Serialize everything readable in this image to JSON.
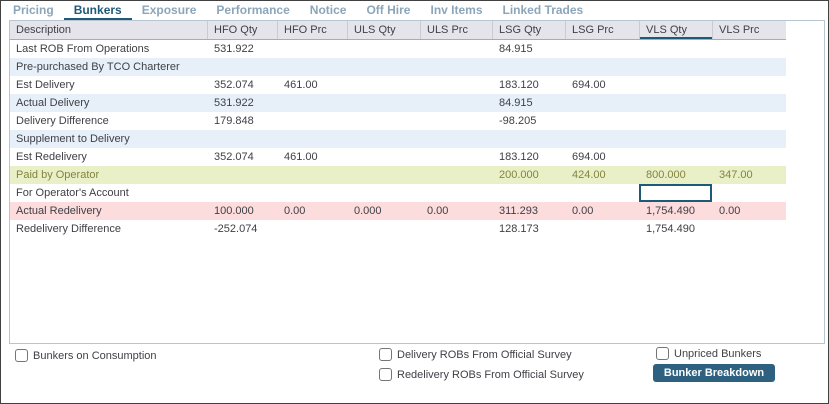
{
  "colors": {
    "accent": "#1d5a78",
    "tab_inactive": "#8ba6ba",
    "header_bg": "#e4e4ea",
    "header_text": "#3f3f46",
    "text": "#3f3f46",
    "row_alt": "#e7f0f8",
    "row_green": "#e9f0c8",
    "row_green_text": "#84843e",
    "row_pink": "#fcdcdc",
    "grid_border": "#b7c6d1",
    "button_bg": "#2e6180"
  },
  "tabs": [
    {
      "label": "Pricing",
      "active": false
    },
    {
      "label": "Bunkers",
      "active": true
    },
    {
      "label": "Exposure",
      "active": false
    },
    {
      "label": "Performance",
      "active": false
    },
    {
      "label": "Notice",
      "active": false
    },
    {
      "label": "Off Hire",
      "active": false
    },
    {
      "label": "Inv Items",
      "active": false
    },
    {
      "label": "Linked Trades",
      "active": false
    }
  ],
  "table": {
    "columns": [
      "Description",
      "HFO Qty",
      "HFO Prc",
      "ULS Qty",
      "ULS Prc",
      "LSG Qty",
      "LSG Prc",
      "VLS Qty",
      "VLS Prc"
    ],
    "selected_column": "VLS Qty",
    "rows": [
      {
        "variant": "plain",
        "cells": [
          "Last ROB From Operations",
          "531.922",
          "",
          "",
          "",
          "84.915",
          "",
          "",
          ""
        ]
      },
      {
        "variant": "alt",
        "cells": [
          "Pre-purchased By TCO Charterer",
          "",
          "",
          "",
          "",
          "",
          "",
          "",
          ""
        ]
      },
      {
        "variant": "plain",
        "cells": [
          "Est Delivery",
          "352.074",
          "461.00",
          "",
          "",
          "183.120",
          "694.00",
          "",
          ""
        ]
      },
      {
        "variant": "alt",
        "cells": [
          "Actual Delivery",
          "531.922",
          "",
          "",
          "",
          "84.915",
          "",
          "",
          ""
        ]
      },
      {
        "variant": "plain",
        "cells": [
          "Delivery Difference",
          "179.848",
          "",
          "",
          "",
          "-98.205",
          "",
          "",
          ""
        ]
      },
      {
        "variant": "alt",
        "cells": [
          "Supplement to Delivery",
          "",
          "",
          "",
          "",
          "",
          "",
          "",
          ""
        ]
      },
      {
        "variant": "plain",
        "cells": [
          "Est Redelivery",
          "352.074",
          "461.00",
          "",
          "",
          "183.120",
          "694.00",
          "",
          ""
        ]
      },
      {
        "variant": "green",
        "cells": [
          "Paid by Operator",
          "",
          "",
          "",
          "",
          "200.000",
          "424.00",
          "800.000",
          "347.00"
        ]
      },
      {
        "variant": "plain",
        "focused_col": 7,
        "cells": [
          "For Operator's Account",
          "",
          "",
          "",
          "",
          "",
          "",
          "",
          ""
        ]
      },
      {
        "variant": "pink",
        "cells": [
          "Actual Redelivery",
          "100.000",
          "0.00",
          "0.000",
          "0.00",
          "311.293",
          "0.00",
          "1,754.490",
          "0.00"
        ]
      },
      {
        "variant": "plain",
        "cells": [
          "Redelivery Difference",
          "-252.074",
          "",
          "",
          "",
          "128.173",
          "",
          "1,754.490",
          ""
        ]
      }
    ]
  },
  "footer": {
    "checkboxes": [
      {
        "label": "Bunkers on Consumption",
        "checked": false
      },
      {
        "label": "Delivery ROBs From Official Survey",
        "checked": false
      },
      {
        "label": "Redelivery ROBs From Official Survey",
        "checked": false
      },
      {
        "label": "Unpriced Bunkers",
        "checked": false
      }
    ],
    "button_label": "Bunker Breakdown"
  }
}
